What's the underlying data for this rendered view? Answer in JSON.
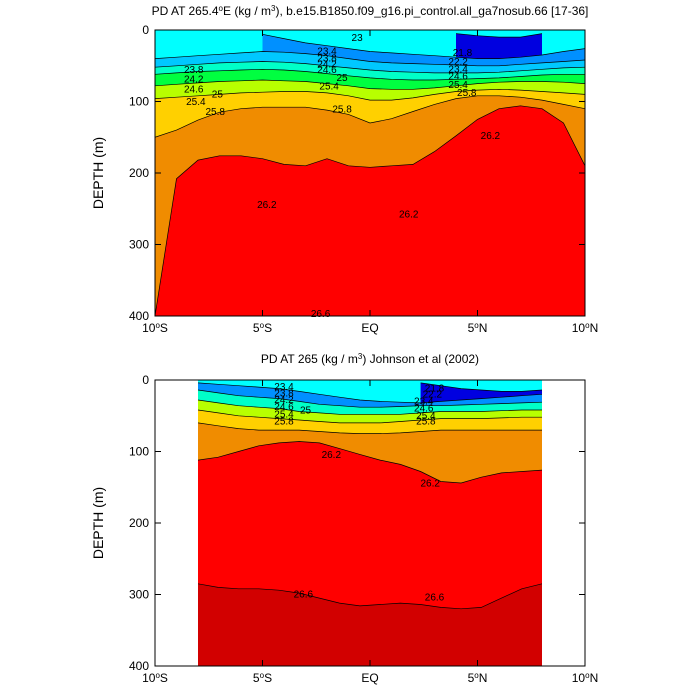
{
  "chart_data": [
    {
      "type": "contour",
      "title": "PD AT 265.4°E (kg / m³), b.e15.B1850.f09_g16.pi_control.all_ga7nosub.66 [17-36]",
      "title_parts": {
        "prefix": "PD AT 265.4",
        "deg": "o",
        "mid1": "E (kg / m",
        "sup": "3",
        "suffix": "), b.e15.B1850.f09_g16.pi_control.all_ga7nosub.66 [17-36]"
      },
      "xlabel": "",
      "ylabel": "DEPTH (m)",
      "xlim": [
        -10,
        10
      ],
      "ylim": [
        400,
        0
      ],
      "x_ticks": [
        {
          "value": -10,
          "num": "10",
          "deg": "o",
          "hemi": "S"
        },
        {
          "value": -5,
          "num": "5",
          "deg": "o",
          "hemi": "S"
        },
        {
          "value": 0,
          "num": "EQ",
          "deg": "",
          "hemi": ""
        },
        {
          "value": 5,
          "num": "5",
          "deg": "o",
          "hemi": "N"
        },
        {
          "value": 10,
          "num": "10",
          "deg": "o",
          "hemi": "N"
        }
      ],
      "y_ticks": [
        0,
        100,
        200,
        300,
        400
      ],
      "data_extent_lat": [
        -10,
        10
      ],
      "levels": [
        21.8,
        22.2,
        22.6,
        23,
        23.4,
        23.8,
        24.2,
        24.6,
        25,
        25.4,
        25.8,
        26.2,
        26.6
      ],
      "isopycnals": [
        {
          "value": 22.6,
          "depths": [
            null,
            null,
            null,
            null,
            null,
            null,
            null,
            null,
            null,
            null,
            null,
            null,
            null,
            null,
            5,
            8,
            10,
            10,
            5,
            null,
            null
          ]
        },
        {
          "value": 23.4,
          "depths": [
            null,
            null,
            null,
            null,
            null,
            6,
            12,
            18,
            22,
            26,
            30,
            32,
            34,
            36,
            38,
            40,
            40,
            38,
            35,
            30,
            26
          ]
        },
        {
          "value": 23.8,
          "depths": [
            40,
            38,
            36,
            34,
            32,
            30,
            31,
            33,
            36,
            40,
            44,
            46,
            47,
            48,
            49,
            50,
            50,
            48,
            46,
            44,
            42
          ]
        },
        {
          "value": 24.2,
          "depths": [
            52,
            50,
            48,
            46,
            45,
            44,
            45,
            47,
            50,
            53,
            56,
            58,
            59,
            60,
            60,
            60,
            59,
            57,
            55,
            53,
            52
          ]
        },
        {
          "value": 24.6,
          "depths": [
            62,
            60,
            58,
            57,
            56,
            55,
            56,
            58,
            61,
            64,
            67,
            69,
            70,
            70,
            69,
            68,
            67,
            65,
            63,
            62,
            62
          ]
        },
        {
          "value": 25,
          "depths": [
            78,
            76,
            74,
            72,
            71,
            70,
            71,
            72,
            75,
            78,
            82,
            83,
            83,
            81,
            78,
            75,
            73,
            72,
            72,
            73,
            75
          ]
        },
        {
          "value": 25.4,
          "depths": [
            96,
            94,
            92,
            90,
            88,
            87,
            86,
            86,
            88,
            92,
            98,
            98,
            95,
            90,
            86,
            84,
            83,
            84,
            86,
            88,
            90
          ]
        },
        {
          "value": 25.8,
          "depths": [
            150,
            140,
            126,
            115,
            110,
            108,
            108,
            108,
            112,
            118,
            130,
            124,
            114,
            104,
            96,
            92,
            92,
            94,
            98,
            104,
            110
          ]
        },
        {
          "value": 26.2,
          "depths": [
            400,
            208,
            182,
            176,
            176,
            180,
            188,
            190,
            180,
            190,
            192,
            190,
            188,
            170,
            148,
            125,
            110,
            106,
            110,
            130,
            190
          ]
        },
        {
          "value": 26.6,
          "depths": [
            400,
            400,
            400,
            400,
            400,
            400,
            400,
            400,
            400,
            400,
            400,
            400,
            400,
            400,
            400,
            400,
            400,
            400,
            400,
            400,
            400
          ]
        }
      ],
      "contour_labels": [
        {
          "text": "23",
          "lat": -0.6,
          "depth": 11
        },
        {
          "text": "23.4",
          "lat": -2.0,
          "depth": 30
        },
        {
          "text": "23.8",
          "lat": -2.0,
          "depth": 40
        },
        {
          "text": "24.2",
          "lat": -2.0,
          "depth": 48
        },
        {
          "text": "24.6",
          "lat": -2.0,
          "depth": 56
        },
        {
          "text": "25",
          "lat": -1.3,
          "depth": 67
        },
        {
          "text": "25.4",
          "lat": -1.9,
          "depth": 79
        },
        {
          "text": "25.8",
          "lat": -1.3,
          "depth": 111
        },
        {
          "text": "23.8",
          "lat": -8.2,
          "depth": 56
        },
        {
          "text": "24.2",
          "lat": -8.2,
          "depth": 69
        },
        {
          "text": "24.6",
          "lat": -8.2,
          "depth": 83
        },
        {
          "text": "25",
          "lat": -7.1,
          "depth": 90
        },
        {
          "text": "25.4",
          "lat": -8.1,
          "depth": 101
        },
        {
          "text": "25.8",
          "lat": -7.2,
          "depth": 115
        },
        {
          "text": "21.8",
          "lat": 4.3,
          "depth": 32
        },
        {
          "text": "22.2",
          "lat": 4.1,
          "depth": 45
        },
        {
          "text": "23.4",
          "lat": 4.1,
          "depth": 55
        },
        {
          "text": "24.6",
          "lat": 4.1,
          "depth": 65
        },
        {
          "text": "25.4",
          "lat": 4.1,
          "depth": 77
        },
        {
          "text": "25.8",
          "lat": 4.5,
          "depth": 88
        },
        {
          "text": "26.2",
          "lat": 5.6,
          "depth": 148
        },
        {
          "text": "26.2",
          "lat": -4.8,
          "depth": 245
        },
        {
          "text": "26.2",
          "lat": 1.8,
          "depth": 258
        },
        {
          "text": "26.6",
          "lat": -2.3,
          "depth": 397
        }
      ]
    },
    {
      "type": "contour",
      "title": "PD AT 265 (kg / m³) Johnson et al (2002)",
      "title_parts": {
        "prefix": "PD AT 265 (kg / m",
        "deg": "",
        "mid1": "",
        "sup": "3",
        "suffix": ") Johnson et al (2002)"
      },
      "xlabel": "",
      "ylabel": "DEPTH (m)",
      "xlim": [
        -10,
        10
      ],
      "ylim": [
        400,
        0
      ],
      "x_ticks": [
        {
          "value": -10,
          "num": "10",
          "deg": "o",
          "hemi": "S"
        },
        {
          "value": -5,
          "num": "5",
          "deg": "o",
          "hemi": "S"
        },
        {
          "value": 0,
          "num": "EQ",
          "deg": "",
          "hemi": ""
        },
        {
          "value": 5,
          "num": "5",
          "deg": "o",
          "hemi": "N"
        },
        {
          "value": 10,
          "num": "10",
          "deg": "o",
          "hemi": "N"
        }
      ],
      "y_ticks": [
        0,
        100,
        200,
        300,
        400
      ],
      "data_extent_lat": [
        -8,
        8
      ],
      "levels": [
        21.8,
        22.2,
        22.6,
        23,
        23.4,
        23.8,
        24.2,
        24.6,
        25,
        25.4,
        25.8,
        26.2,
        26.6
      ],
      "isopycnals": [
        {
          "value": 22.6,
          "depths": [
            null,
            null,
            null,
            null,
            null,
            null,
            null,
            null,
            null,
            null,
            null,
            4,
            8,
            12,
            14,
            16,
            16,
            14
          ]
        },
        {
          "value": 23.4,
          "depths": [
            4,
            6,
            8,
            10,
            12,
            16,
            20,
            24,
            28,
            30,
            31,
            32,
            30,
            28,
            26,
            24,
            22,
            20
          ]
        },
        {
          "value": 24.2,
          "depths": [
            14,
            18,
            22,
            24,
            26,
            30,
            34,
            36,
            38,
            38,
            37,
            36,
            36,
            35,
            34,
            33,
            32,
            31
          ]
        },
        {
          "value": 25,
          "depths": [
            28,
            32,
            36,
            38,
            40,
            44,
            46,
            48,
            48,
            48,
            48,
            46,
            44,
            44,
            44,
            43,
            42,
            42
          ]
        },
        {
          "value": 25.4,
          "depths": [
            42,
            46,
            50,
            52,
            54,
            56,
            58,
            60,
            60,
            60,
            58,
            56,
            54,
            54,
            54,
            53,
            52,
            52
          ]
        },
        {
          "value": 25.8,
          "depths": [
            60,
            64,
            68,
            70,
            70,
            70,
            72,
            74,
            75,
            75,
            74,
            72,
            70,
            70,
            70,
            70,
            70,
            70
          ]
        },
        {
          "value": 26.2,
          "depths": [
            112,
            108,
            100,
            92,
            88,
            86,
            88,
            96,
            104,
            112,
            118,
            128,
            142,
            144,
            136,
            130,
            128,
            126
          ]
        },
        {
          "value": 26.6,
          "depths": [
            285,
            290,
            292,
            292,
            294,
            298,
            305,
            312,
            316,
            314,
            312,
            314,
            318,
            320,
            318,
            305,
            292,
            285
          ]
        }
      ],
      "contour_labels": [
        {
          "text": "23.4",
          "lat": -4.0,
          "depth": 10
        },
        {
          "text": "23.8",
          "lat": -4.0,
          "depth": 19
        },
        {
          "text": "24.2",
          "lat": -4.0,
          "depth": 28
        },
        {
          "text": "24.6",
          "lat": -4.0,
          "depth": 38
        },
        {
          "text": "25",
          "lat": -3.0,
          "depth": 43
        },
        {
          "text": "25.4",
          "lat": -4.0,
          "depth": 48
        },
        {
          "text": "25.8",
          "lat": -4.0,
          "depth": 58
        },
        {
          "text": "26.2",
          "lat": -1.8,
          "depth": 105
        },
        {
          "text": "26.2",
          "lat": 2.8,
          "depth": 145
        },
        {
          "text": "21.8",
          "lat": 3.0,
          "depth": 12
        },
        {
          "text": "22.2",
          "lat": 2.9,
          "depth": 20
        },
        {
          "text": "23.4",
          "lat": 2.5,
          "depth": 30
        },
        {
          "text": "24.6",
          "lat": 2.5,
          "depth": 40
        },
        {
          "text": "25.4",
          "lat": 2.6,
          "depth": 50
        },
        {
          "text": "25.8",
          "lat": 2.6,
          "depth": 58
        },
        {
          "text": "26.6",
          "lat": -3.1,
          "depth": 300
        },
        {
          "text": "26.6",
          "lat": 3.0,
          "depth": 304
        }
      ]
    }
  ]
}
